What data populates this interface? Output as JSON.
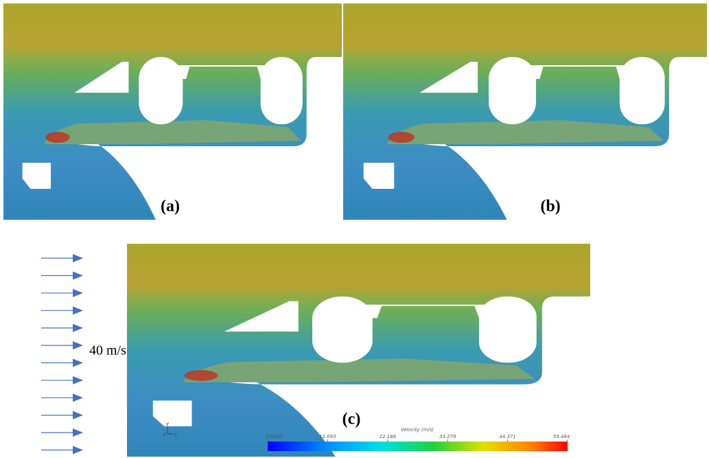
{
  "panels": [
    {
      "label": "(a)"
    },
    {
      "label": "(b)"
    },
    {
      "label": "(c)"
    }
  ],
  "inflow": {
    "label": "40 m/s"
  },
  "axes_triad": {
    "y": "y",
    "z": "z",
    "x": "x"
  },
  "colorbar": {
    "title": "Velocity (m/s)",
    "lim": [
      0,
      55.464
    ],
    "ticks": [
      {
        "value": 0,
        "label": "0.0000"
      },
      11.093,
      22.186,
      33.279,
      44.371,
      55.464
    ]
  }
}
